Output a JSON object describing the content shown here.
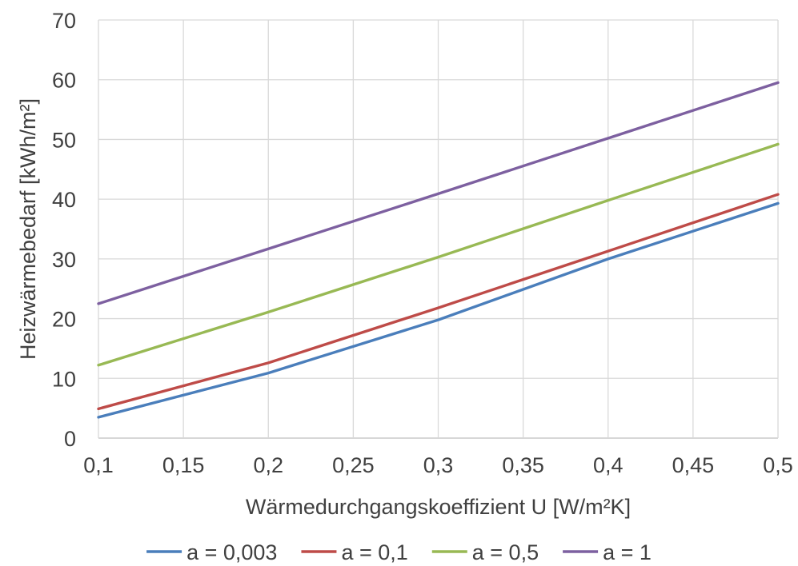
{
  "chart_data": {
    "type": "line",
    "title": "",
    "xlabel": "Wärmedurchgangskoeffizient U [W/m²K]",
    "ylabel": "Heizwärmebedarf [kWh/m²]",
    "xlim": [
      0.1,
      0.5
    ],
    "ylim": [
      0,
      70
    ],
    "x_ticks": [
      0.1,
      0.15,
      0.2,
      0.25,
      0.3,
      0.35,
      0.4,
      0.45,
      0.5
    ],
    "x_tick_labels": [
      "0,1",
      "0,15",
      "0,2",
      "0,25",
      "0,3",
      "0,35",
      "0,4",
      "0,45",
      "0,5"
    ],
    "y_ticks": [
      0,
      10,
      20,
      30,
      40,
      50,
      60,
      70
    ],
    "y_tick_labels": [
      "0",
      "10",
      "20",
      "30",
      "40",
      "50",
      "60",
      "70"
    ],
    "grid": true,
    "legend_position": "bottom",
    "x": [
      0.1,
      0.2,
      0.3,
      0.4,
      0.5
    ],
    "series": [
      {
        "name": "a = 0,003",
        "color": "#4a7ebb",
        "values": [
          3.5,
          10.9,
          19.8,
          30.0,
          39.3
        ]
      },
      {
        "name": "a = 0,1",
        "color": "#be4b48",
        "values": [
          4.9,
          12.6,
          21.8,
          31.3,
          40.8
        ]
      },
      {
        "name": "a = 0,5",
        "color": "#98b954",
        "values": [
          12.2,
          21.1,
          30.3,
          39.8,
          49.2
        ]
      },
      {
        "name": "a = 1",
        "color": "#7d60a0",
        "values": [
          22.5,
          31.7,
          40.9,
          50.2,
          59.5
        ]
      }
    ]
  }
}
